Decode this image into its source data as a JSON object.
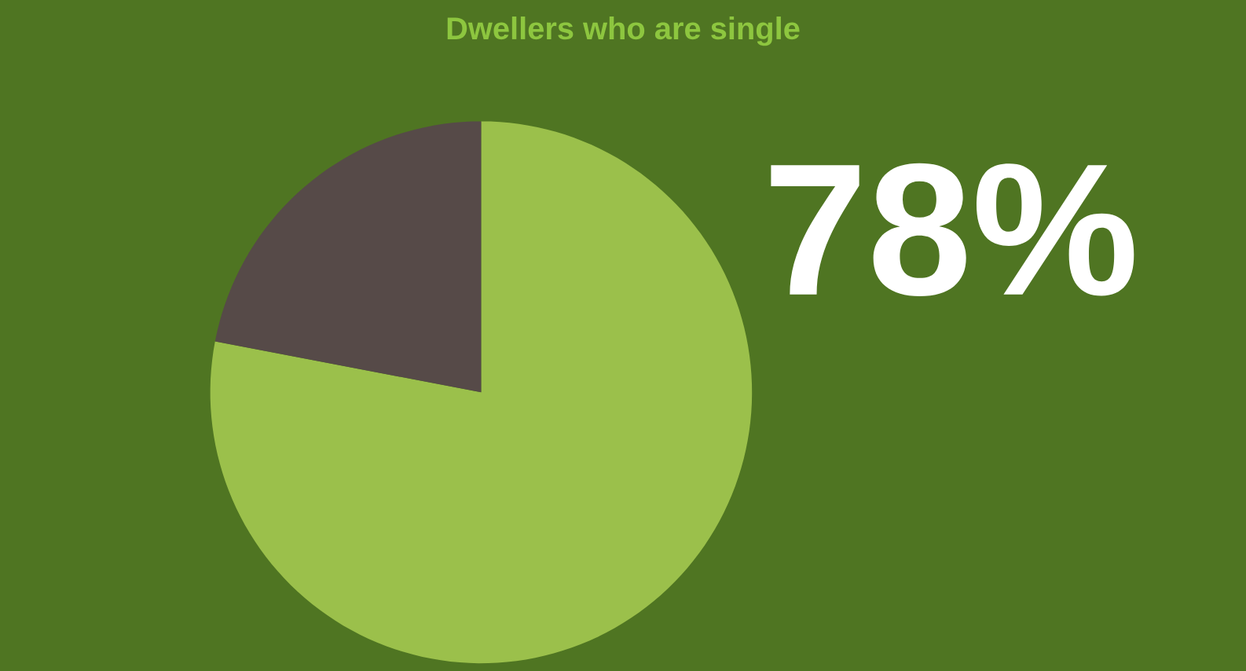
{
  "chart_data": {
    "type": "pie",
    "title": "Dwellers who are single",
    "categories": [
      null,
      null
    ],
    "values": [
      78,
      22
    ],
    "colors": [
      "#9bc04b",
      "#564a48"
    ],
    "value_labels": [
      "78%",
      null
    ]
  }
}
